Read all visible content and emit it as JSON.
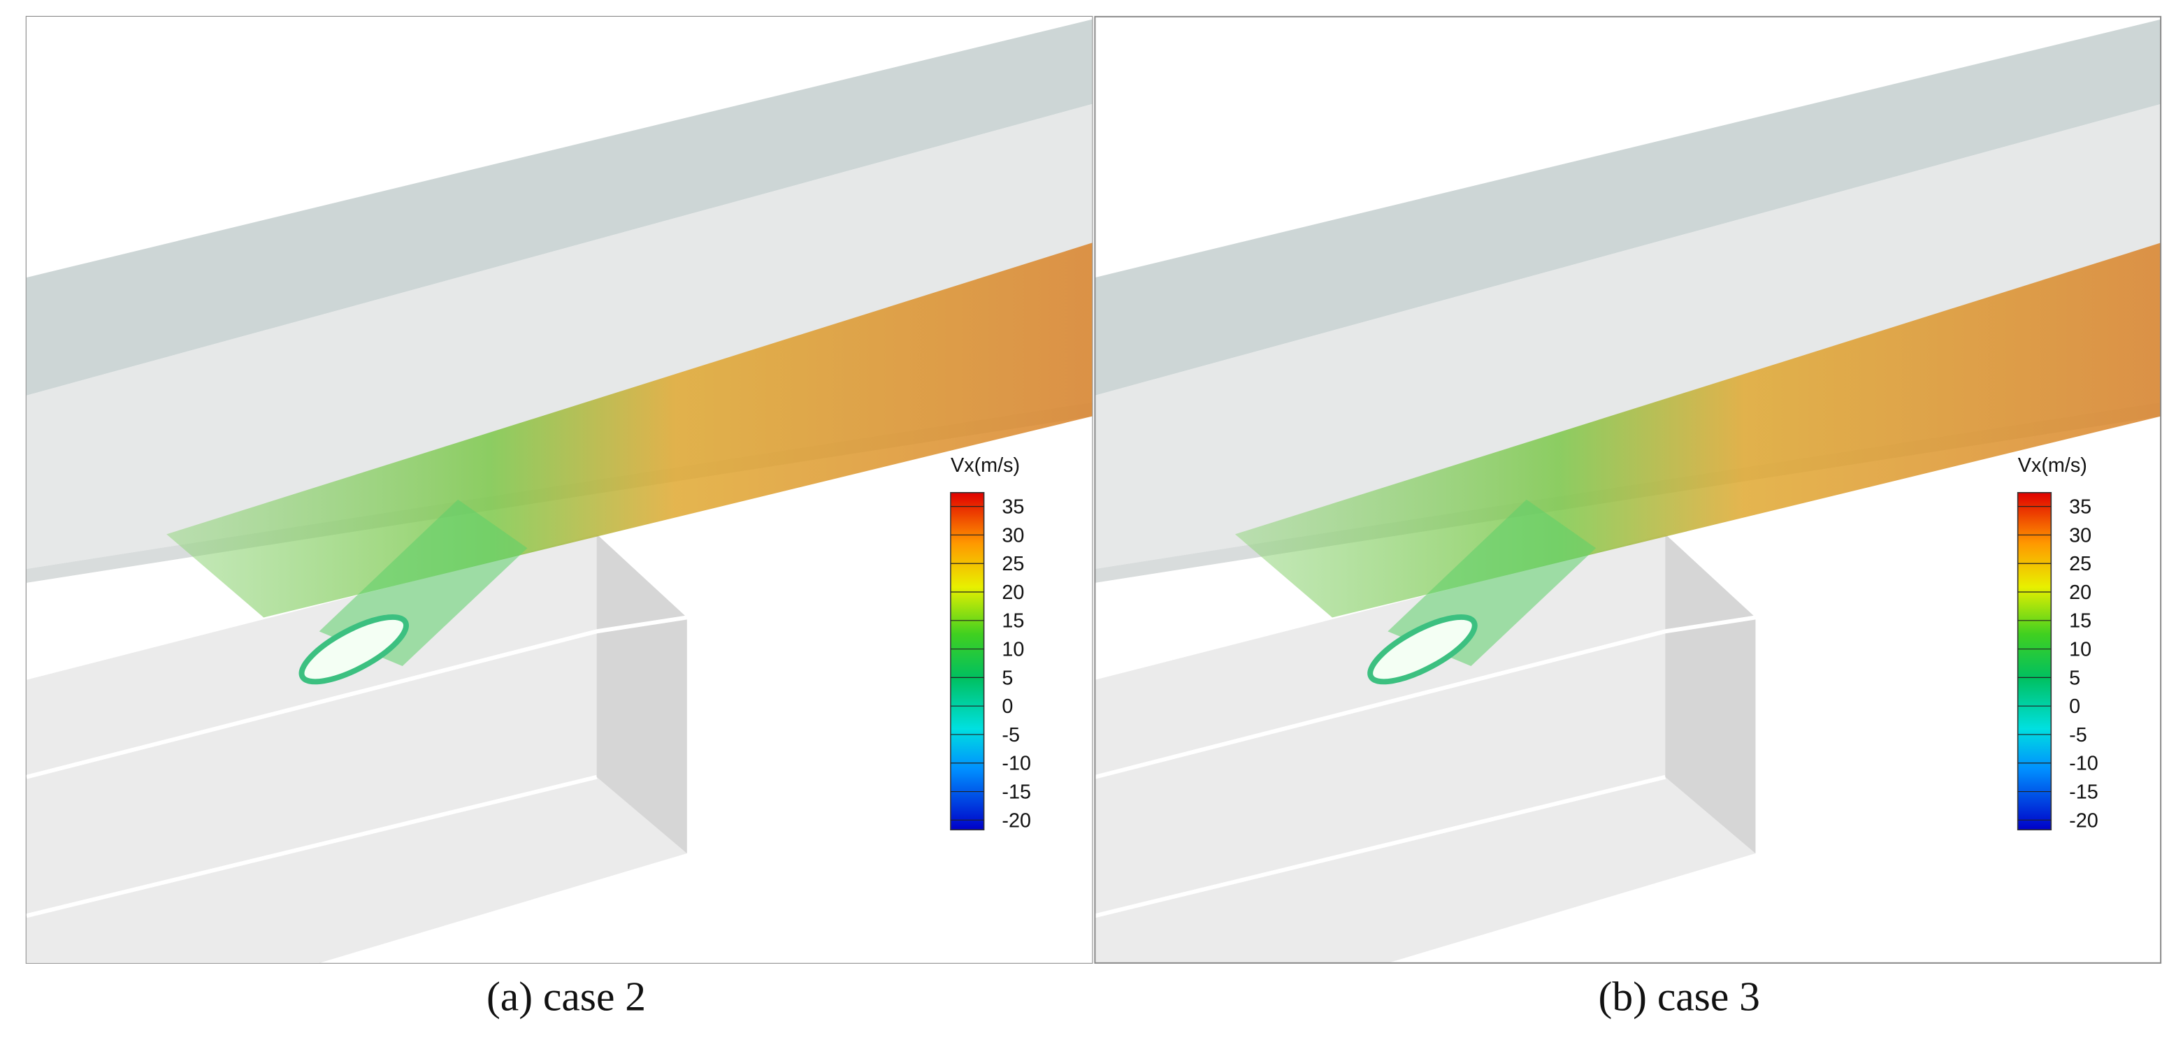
{
  "panels": [
    {
      "caption": "(a) case 2",
      "colorbar": {
        "title": "Vx(m/s)",
        "ticks": [
          35,
          30,
          25,
          20,
          15,
          10,
          5,
          0,
          -5,
          -10,
          -15,
          -20
        ]
      }
    },
    {
      "caption": "(b) case 3",
      "colorbar": {
        "title": "Vx(m/s)",
        "ticks": [
          35,
          30,
          25,
          20,
          15,
          10,
          5,
          0,
          -5,
          -10,
          -15,
          -20
        ]
      }
    }
  ]
}
